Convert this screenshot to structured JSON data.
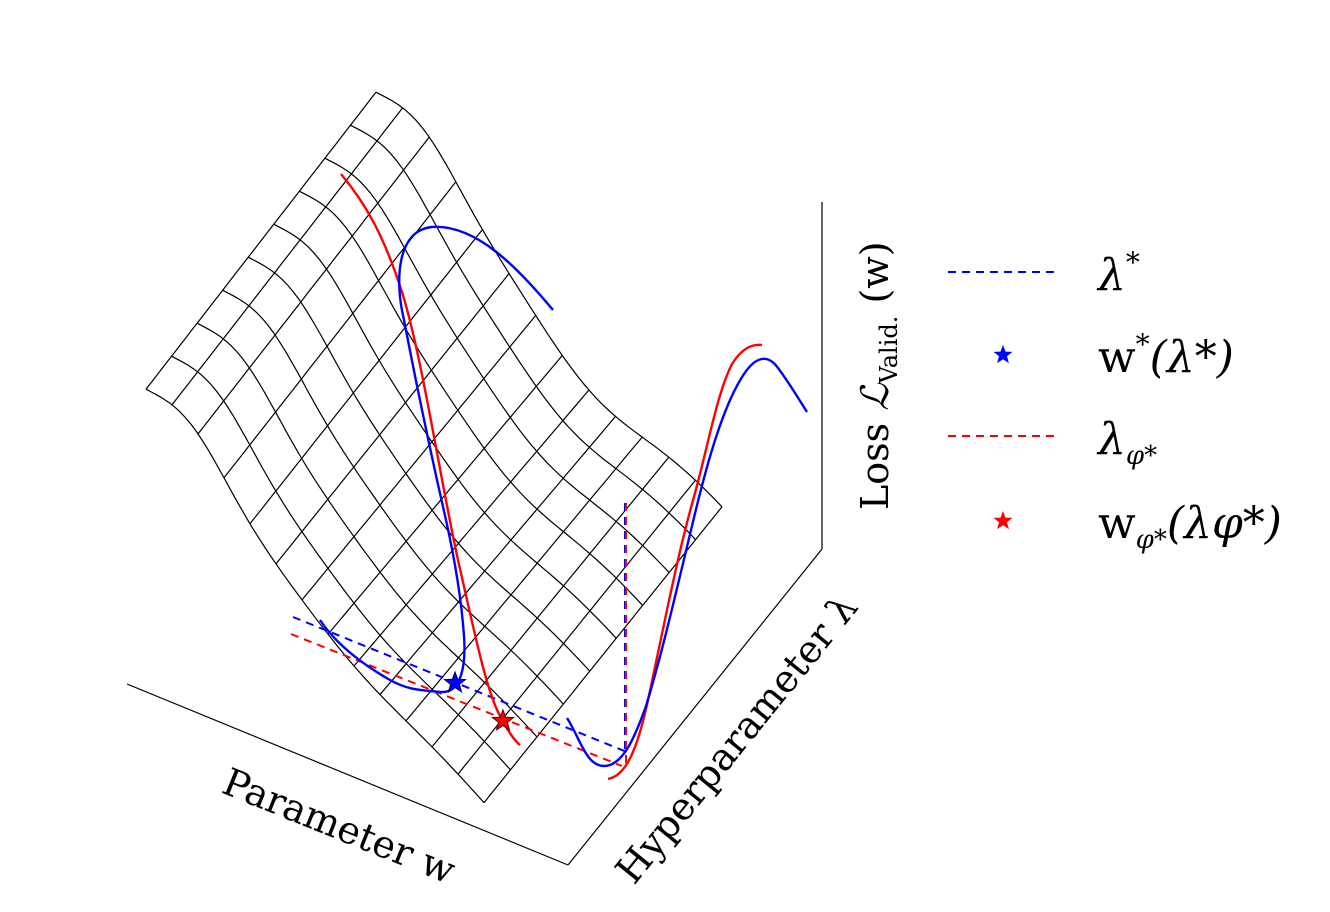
{
  "axes": {
    "x_label": "Parameter w",
    "y_label": "Hyperparameter λ",
    "z_label_prefix": "Loss ",
    "z_label_symbol": "ℒ",
    "z_label_subscript": "Valid.",
    "z_label_suffix": " (w)"
  },
  "legend": {
    "items": [
      {
        "kind": "line",
        "color": "#0000ff",
        "base": "λ",
        "sup": "*",
        "sub": "",
        "rest": ""
      },
      {
        "kind": "star",
        "color": "#0000ff",
        "base": "w",
        "sup": "*",
        "sub": "",
        "rest": "(λ*)"
      },
      {
        "kind": "line",
        "color": "#ff0000",
        "base": "λ",
        "sup": "",
        "sub": "φ*",
        "rest": ""
      },
      {
        "kind": "star",
        "color": "#ff0000",
        "base": "w",
        "sup": "",
        "sub": "φ*",
        "rest": "(λφ*)"
      }
    ]
  },
  "colors": {
    "optimal": "#0000ff",
    "approx": "#ff0000",
    "surface": "#000000"
  }
}
